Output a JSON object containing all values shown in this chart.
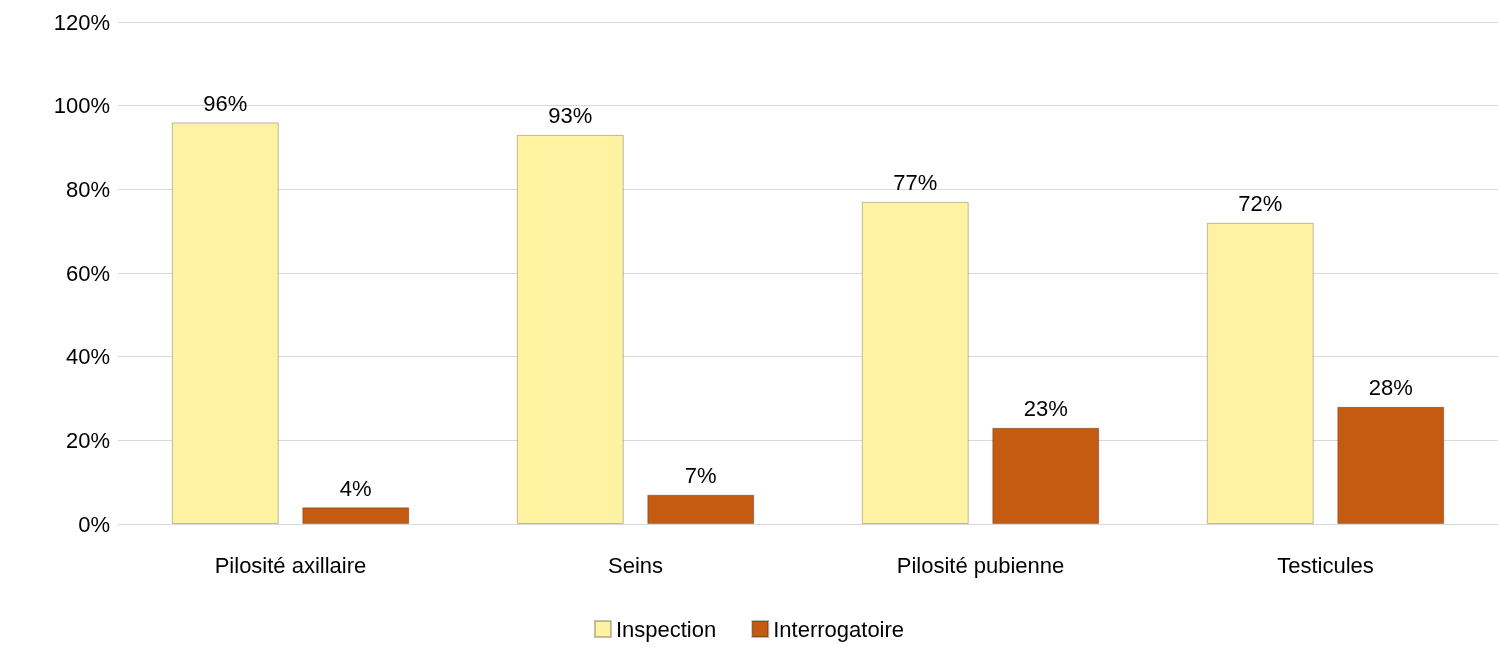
{
  "chart_data": {
    "type": "bar",
    "categories": [
      "Pilosité axillaire",
      "Seins",
      "Pilosité pubienne",
      "Testicules"
    ],
    "series": [
      {
        "name": "Inspection",
        "color": "#fff2a0",
        "values": [
          96,
          93,
          77,
          72
        ],
        "value_labels": [
          "96%",
          "93%",
          "77%",
          "72%"
        ]
      },
      {
        "name": "Interrogatoire",
        "color": "#c55a11",
        "values": [
          4,
          7,
          23,
          28
        ],
        "value_labels": [
          "4%",
          "7%",
          "23%",
          "28%"
        ]
      }
    ],
    "ylim": [
      0,
      120
    ],
    "yticks": [
      {
        "value": 0,
        "label": "0%"
      },
      {
        "value": 20,
        "label": "20%"
      },
      {
        "value": 40,
        "label": "40%"
      },
      {
        "value": 60,
        "label": "60%"
      },
      {
        "value": 80,
        "label": "80%"
      },
      {
        "value": 100,
        "label": "100%"
      },
      {
        "value": 120,
        "label": "120%"
      }
    ],
    "grid": "y",
    "legend": "bottom"
  }
}
